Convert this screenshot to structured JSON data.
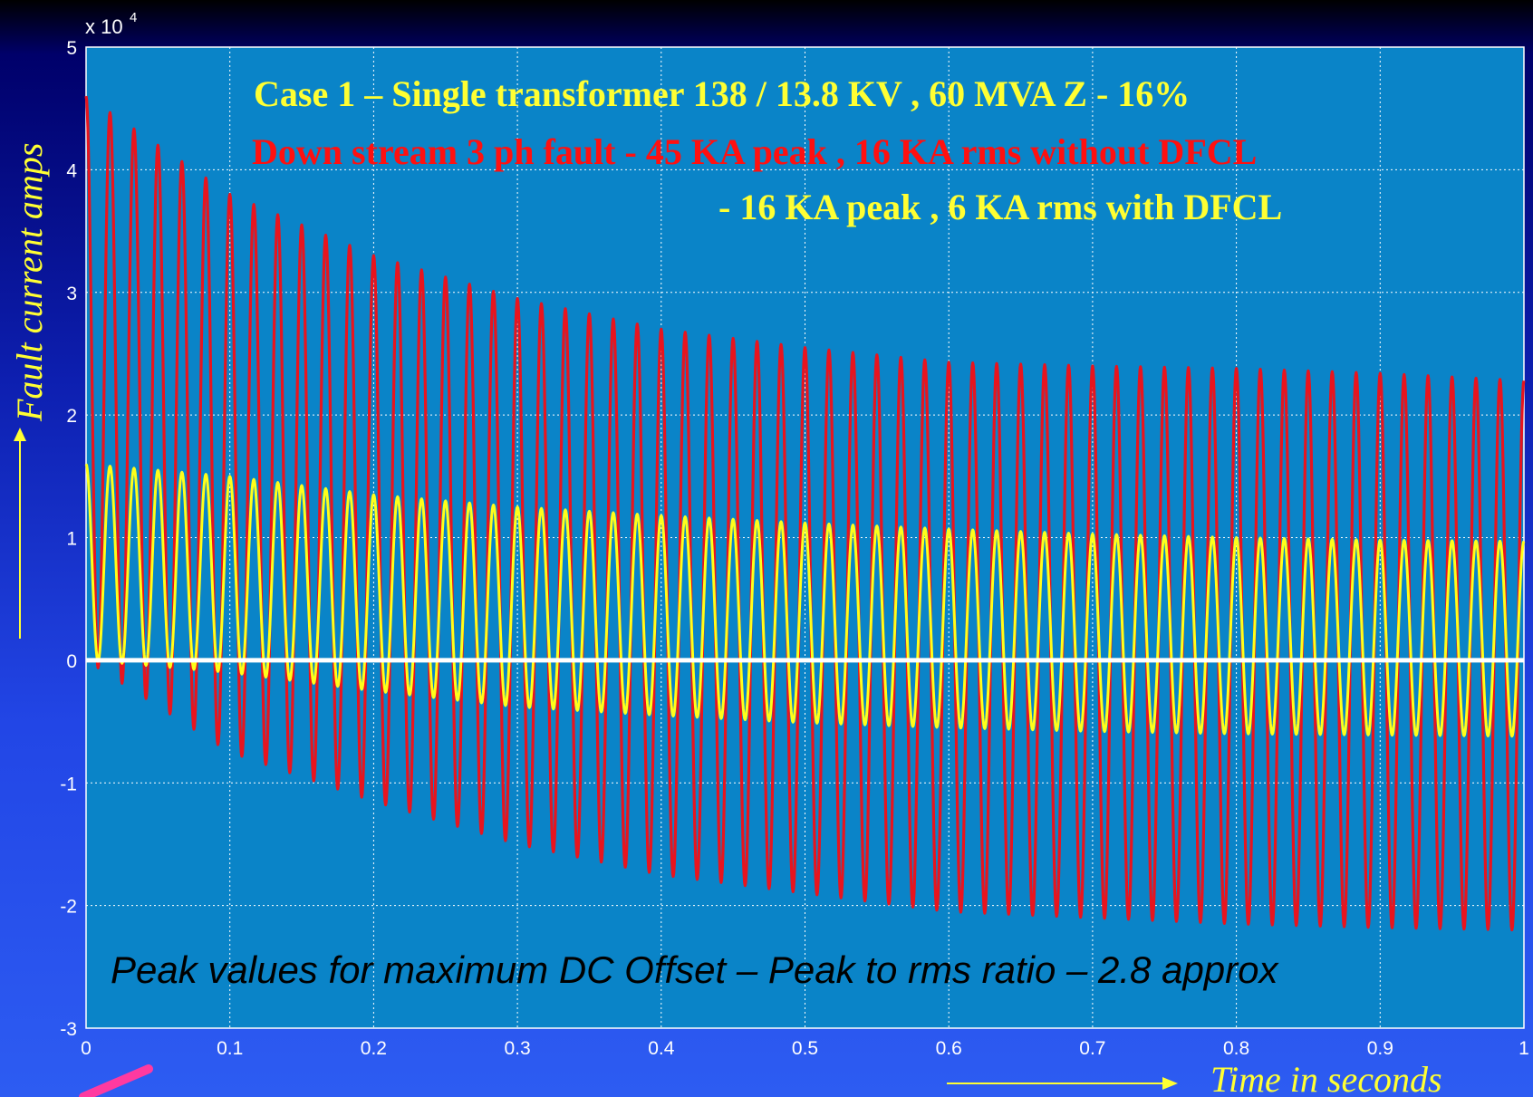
{
  "chart_data": {
    "type": "line",
    "title_lines": [
      "Case 1 – Single transformer 138 / 13.8 KV , 60 MVA  Z - 16%",
      "Down stream 3 ph fault  - 45 KA peak ,  16 KA rms  without DFCL",
      "- 16 KA peak , 6 KA rms with DFCL"
    ],
    "xlabel": "Time in seconds",
    "ylabel": "Fault current amps",
    "y_exponent_label": "x 10",
    "y_exponent_power": "4",
    "annotation": "Peak values for maximum DC Offset  – Peak to rms ratio – 2.8 approx",
    "xlim": [
      0,
      1
    ],
    "ylim": [
      -30000,
      50000
    ],
    "x_ticks": [
      "0",
      "0.1",
      "0.2",
      "0.3",
      "0.4",
      "0.5",
      "0.6",
      "0.7",
      "0.8",
      "0.9",
      "1"
    ],
    "y_ticks": [
      "-3",
      "-2",
      "-1",
      "0",
      "1",
      "2",
      "3",
      "4",
      "5"
    ],
    "grid": true,
    "frequency_hz": 60,
    "series": [
      {
        "color": "#e8141e",
        "peak_envelope": {
          "x": [
            0,
            0.1,
            0.2,
            0.3,
            0.4,
            0.5,
            0.6,
            0.7,
            0.8,
            0.9,
            1.0
          ],
          "y": [
            46000,
            38000,
            33000,
            29500,
            27000,
            25500,
            24300,
            24000,
            23800,
            23400,
            22800
          ]
        },
        "trough_envelope": {
          "x": [
            0,
            0.1,
            0.2,
            0.3,
            0.4,
            0.5,
            0.6,
            0.7,
            0.8,
            0.9,
            1.0
          ],
          "y": [
            0,
            -7500,
            -11500,
            -15000,
            -17500,
            -19000,
            -20500,
            -21000,
            -21500,
            -21800,
            -22000
          ]
        }
      },
      {
        "color": "#ffff1a",
        "peak_envelope": {
          "x": [
            0,
            0.1,
            0.2,
            0.3,
            0.4,
            0.5,
            0.6,
            0.7,
            0.8,
            0.9,
            1.0
          ],
          "y": [
            16000,
            15000,
            13500,
            12500,
            11800,
            11200,
            10700,
            10300,
            10000,
            9800,
            9700
          ]
        },
        "trough_envelope": {
          "x": [
            0,
            0.1,
            0.2,
            0.3,
            0.4,
            0.5,
            0.6,
            0.7,
            0.8,
            0.9,
            1.0
          ],
          "y": [
            0,
            -1000,
            -2500,
            -3800,
            -4500,
            -5100,
            -5500,
            -5800,
            -6000,
            -6100,
            -6200
          ]
        }
      },
      {
        "color": "#ffffff",
        "peak_envelope": {
          "x": [
            0,
            1
          ],
          "y": [
            0,
            0
          ]
        },
        "trough_envelope": {
          "x": [
            0,
            1
          ],
          "y": [
            0,
            0
          ]
        }
      }
    ]
  },
  "colors": {
    "plot_background": "#0a84c8",
    "grid": "#ffffff"
  }
}
